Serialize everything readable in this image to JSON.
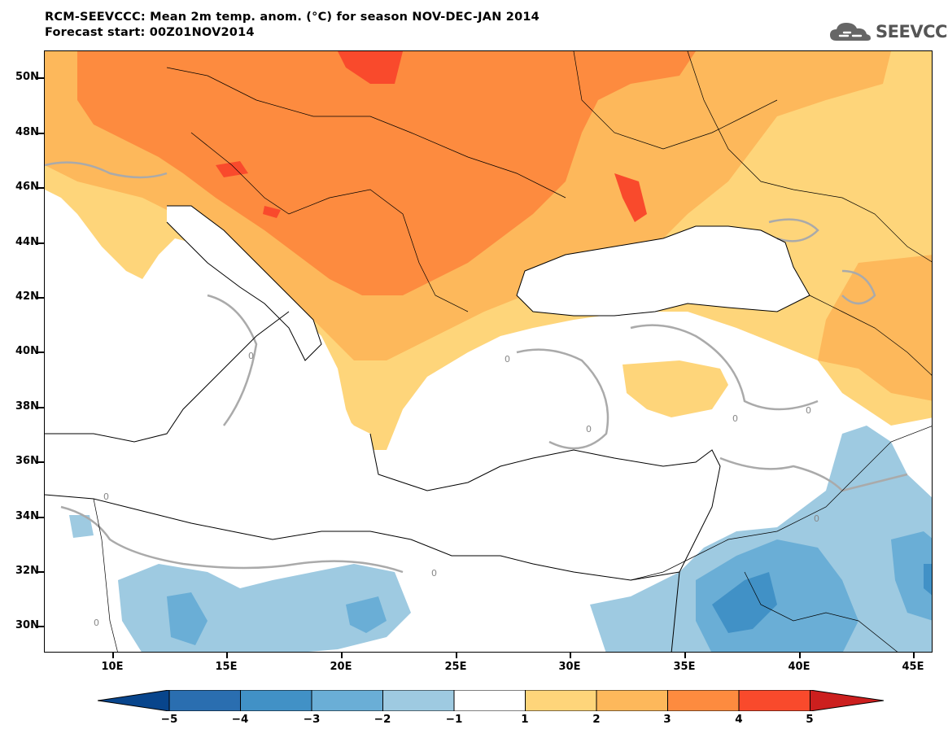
{
  "header": {
    "title_line1": "RCM-SEEVCCC: Mean 2m temp. anom. (°C) for season NOV-DEC-JAN 2014",
    "title_line2": "Forecast start: 00Z01NOV2014"
  },
  "logo": {
    "text": "SEEVCCC",
    "icon": "cloud-icon"
  },
  "map": {
    "latitude_labels": [
      "50N",
      "48N",
      "46N",
      "44N",
      "42N",
      "40N",
      "38N",
      "36N",
      "34N",
      "32N",
      "30N"
    ],
    "longitude_labels": [
      "10E",
      "15E",
      "20E",
      "25E",
      "30E",
      "35E",
      "40E",
      "45E"
    ],
    "contour_label": "0",
    "colors": {
      "anom_5": "#cc1f1e",
      "anom_4": "#f94a2c",
      "anom_3": "#fd8b3f",
      "anom_2": "#fdb85b",
      "anom_1": "#fed57a",
      "neutral": "#ffffff",
      "neg_1": "#9ecae1",
      "neg_2": "#6aaed6",
      "neg_3": "#4191c6",
      "neg_4": "#2170b5",
      "neg_5": "#08458c"
    }
  },
  "colorbar": {
    "ticks": [
      "−5",
      "−4",
      "−3",
      "−2",
      "−1",
      "1",
      "2",
      "3",
      "4",
      "5"
    ],
    "colors": [
      "#08458c",
      "#2a6eb0",
      "#4191c6",
      "#6aaed6",
      "#9ecae1",
      "#ffffff",
      "#fed57a",
      "#fdb85b",
      "#fd8b3f",
      "#f94a2c",
      "#cc1f1e"
    ]
  }
}
